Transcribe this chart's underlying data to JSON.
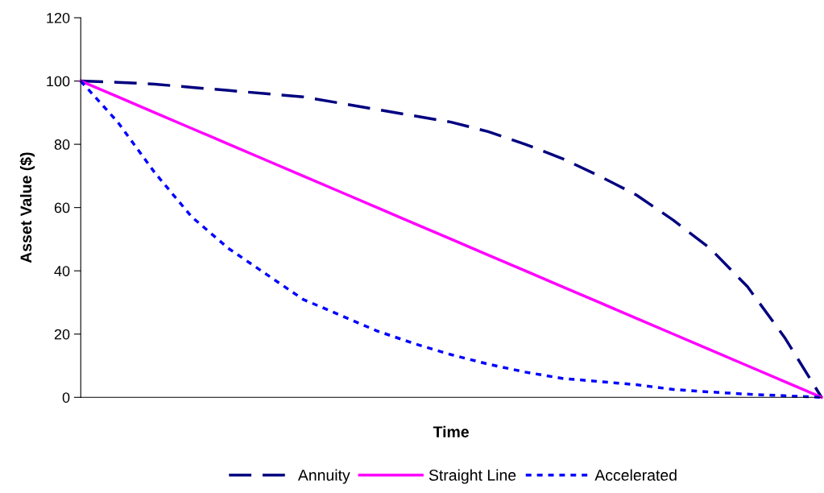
{
  "chart_data": {
    "type": "line",
    "xlabel": "Time",
    "ylabel": "Asset Value ($)",
    "categories": [
      null,
      null,
      null,
      null,
      null,
      null,
      null,
      null,
      null,
      null,
      null,
      null,
      null,
      null,
      null,
      null,
      null,
      null,
      null,
      null,
      null
    ],
    "ylim": [
      0,
      120
    ],
    "yticks": [
      0,
      20,
      40,
      60,
      80,
      100,
      120
    ],
    "grid": false,
    "legend": "bottom",
    "marker": "none",
    "series": [
      {
        "name": "Annuity",
        "color": "#000080",
        "line_style": "dashed",
        "values": [
          100,
          99.6,
          99,
          98,
          97,
          96,
          95,
          93,
          91,
          89,
          87,
          84,
          80,
          75.5,
          70,
          64,
          56,
          47,
          35,
          19,
          0
        ]
      },
      {
        "name": "Straight Line",
        "color": "#ff00ff",
        "line_style": "solid",
        "values": [
          100,
          95,
          90,
          85,
          80,
          75,
          70,
          65,
          60,
          55,
          50,
          45,
          40,
          35,
          30,
          25,
          20,
          15,
          10,
          5,
          0
        ]
      },
      {
        "name": "Accelerated",
        "color": "#0000ff",
        "line_style": "dotted",
        "values": [
          100,
          87,
          71,
          57,
          47,
          39,
          31,
          26,
          21,
          17,
          13.5,
          10.5,
          8,
          6,
          5,
          4,
          2.5,
          1.7,
          1,
          0.5,
          0
        ]
      }
    ]
  }
}
